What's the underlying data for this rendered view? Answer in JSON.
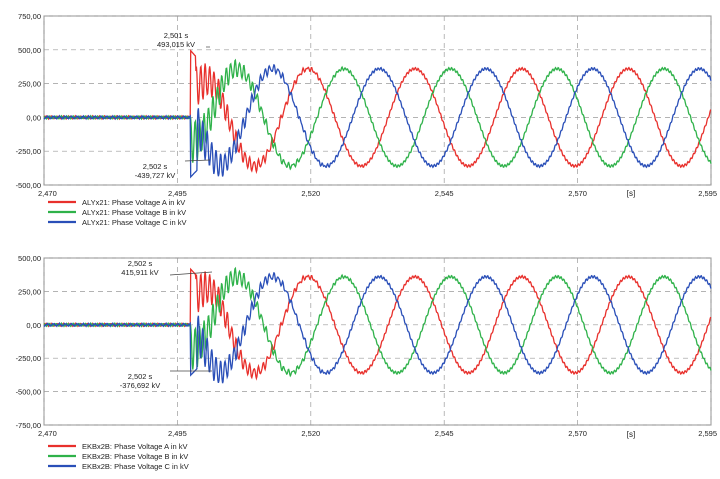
{
  "chart_data": [
    {
      "type": "line",
      "x_unit": "[s]",
      "xlim": [
        2.47,
        2.595
      ],
      "ylim": [
        -500,
        750
      ],
      "x_ticks": [
        "2,470",
        "2,495",
        "2,520",
        "2,545",
        "2,570",
        "2,595"
      ],
      "y_ticks": [
        "-500,00",
        "-250,00",
        "0,00",
        "250,00",
        "500,00",
        "750,00"
      ],
      "grid": true,
      "legend_position": "bottom-left",
      "series": [
        {
          "name": "ALYx21: Phase Voltage A in kV",
          "color": "#e8302c"
        },
        {
          "name": "ALYx21: Phase Voltage B in kV",
          "color": "#2fb24a"
        },
        {
          "name": "ALYx21: Phase Voltage C in kV",
          "color": "#2a4fb8"
        }
      ],
      "annotations": [
        {
          "time": "2,501 s",
          "value": "493,015 kV"
        },
        {
          "time": "2,502 s",
          "value": "-439,727 kV"
        }
      ]
    },
    {
      "type": "line",
      "x_unit": "[s]",
      "xlim": [
        2.47,
        2.595
      ],
      "ylim": [
        -750,
        500
      ],
      "x_ticks": [
        "2,470",
        "2,495",
        "2,520",
        "2,545",
        "2,570",
        "2,595"
      ],
      "y_ticks": [
        "-750,00",
        "-500,00",
        "-250,00",
        "0,00",
        "250,00",
        "500,00"
      ],
      "grid": true,
      "legend_position": "bottom-left",
      "series": [
        {
          "name": "EKBx2B: Phase Voltage A in kV",
          "color": "#e8302c"
        },
        {
          "name": "EKBx2B: Phase Voltage B in kV",
          "color": "#2fb24a"
        },
        {
          "name": "EKBx2B: Phase Voltage C in kV",
          "color": "#2a4fb8"
        }
      ],
      "annotations": [
        {
          "time": "2,502 s",
          "value": "415,911 kV"
        },
        {
          "time": "2,502 s",
          "value": "-376,692 kV"
        }
      ]
    }
  ]
}
